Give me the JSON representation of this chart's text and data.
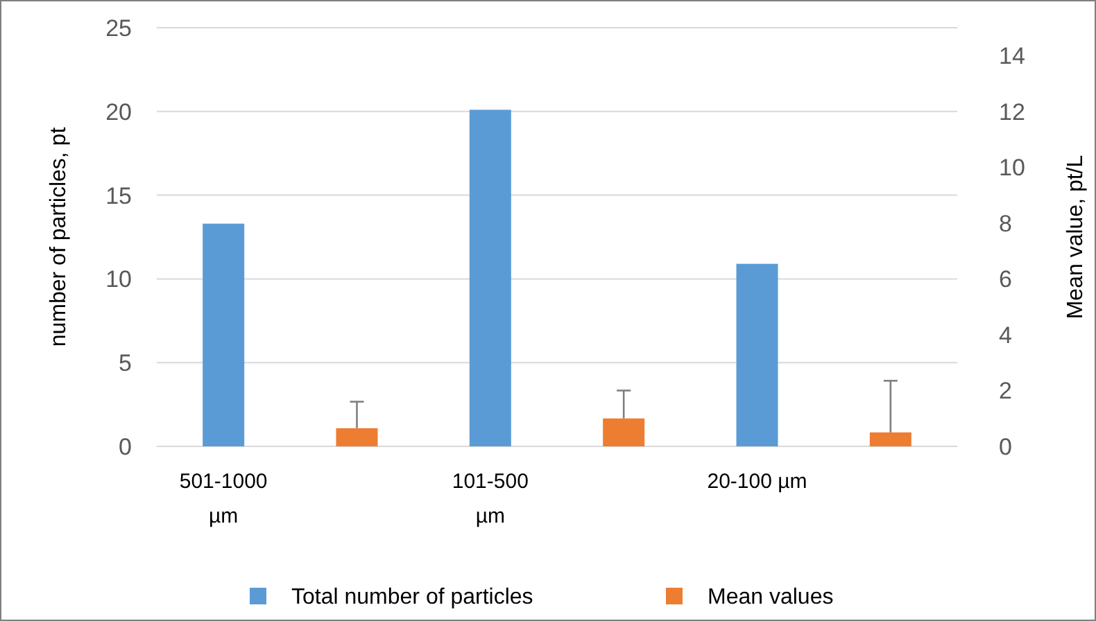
{
  "chart_data": {
    "type": "bar",
    "ylabel": "number of particles, pt",
    "y2label": "Mean value, pt/L",
    "categories": [
      "501-1000 µm",
      null,
      "101-500 µm",
      null,
      "20-100 µm",
      null
    ],
    "series": [
      {
        "name": "Total number of particles",
        "color": "#5b9bd5",
        "values": [
          13.3,
          null,
          20.1,
          null,
          10.9,
          null
        ]
      },
      {
        "name": "Mean values",
        "color": "#ed7d31",
        "axis": "y2",
        "values": [
          null,
          0.65,
          null,
          1.0,
          null,
          0.5
        ],
        "errors": [
          null,
          [
            0.65,
            1.6
          ],
          null,
          [
            1.0,
            2.0
          ],
          null,
          [
            0.5,
            2.35
          ]
        ]
      }
    ],
    "ylim": [
      0,
      25
    ],
    "yticks": [
      0,
      5,
      10,
      15,
      20,
      25
    ],
    "y2lim": [
      0,
      15
    ],
    "y2ticks": [
      0,
      2,
      4,
      6,
      8,
      10,
      12,
      14
    ],
    "grid": "y",
    "legend": "bottom"
  }
}
